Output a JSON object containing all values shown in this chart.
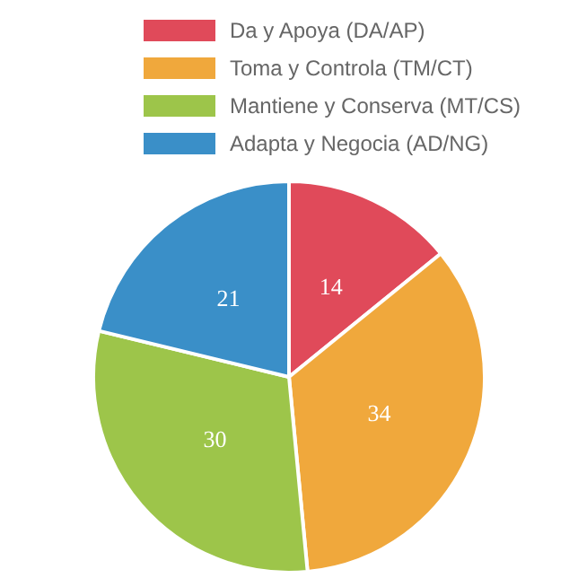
{
  "chart_data": {
    "type": "pie",
    "categories": [
      "Da y Apoya (DA/AP)",
      "Toma y Controla (TM/CT)",
      "Mantiene y Conserva (MT/CS)",
      "Adapta y Negocia (AD/NG)"
    ],
    "values": [
      14,
      34,
      30,
      21
    ],
    "colors": [
      "#e04a5a",
      "#f0a83c",
      "#9dc54a",
      "#3a8fc8"
    ],
    "data_labels": true,
    "legend": "top"
  }
}
